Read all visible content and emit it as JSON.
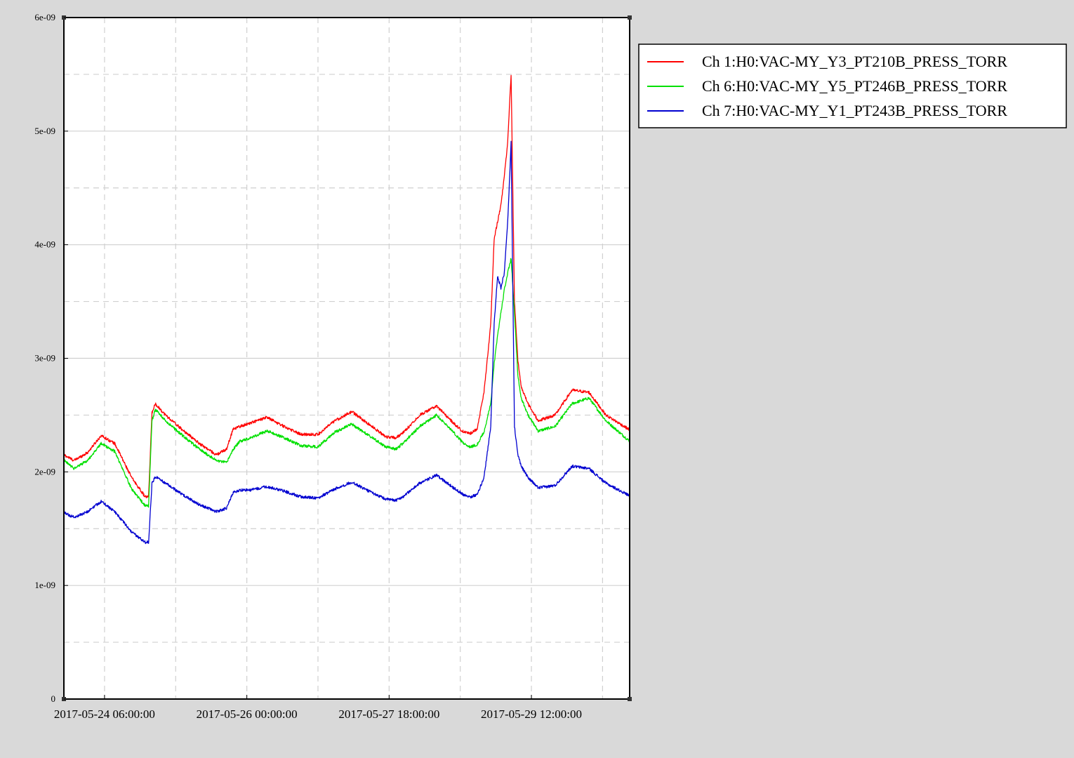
{
  "chart_data": {
    "type": "line",
    "title": "",
    "xlabel": "",
    "ylabel": "",
    "x_range_hours": [
      0,
      167
    ],
    "x_origin": "2017-05-24 00:00:00",
    "ylim": [
      0,
      6e-09
    ],
    "y_ticks": [
      {
        "value": 0,
        "label": "0"
      },
      {
        "value": 1e-09,
        "label": "1e-09"
      },
      {
        "value": 2e-09,
        "label": "2e-09"
      },
      {
        "value": 3e-09,
        "label": "3e-09"
      },
      {
        "value": 4e-09,
        "label": "4e-09"
      },
      {
        "value": 5e-09,
        "label": "5e-09"
      },
      {
        "value": 6e-09,
        "label": "6e-09"
      }
    ],
    "x_ticks": [
      {
        "hours": 12,
        "label": "2017-05-24 06:00:00"
      },
      {
        "hours": 54,
        "label": "2017-05-26 00:00:00"
      },
      {
        "hours": 96,
        "label": "2017-05-27 18:00:00"
      },
      {
        "hours": 138,
        "label": "2017-05-29 12:00:00"
      }
    ],
    "x_grid_hours": [
      12,
      33,
      54,
      75,
      96,
      117,
      138,
      159
    ],
    "y_grid_values": [
      5e-10,
      1e-09,
      1.5e-09,
      2e-09,
      2.5e-09,
      3e-09,
      3.5e-09,
      4e-09,
      4.5e-09,
      5e-09,
      5.5e-09
    ],
    "grid": true,
    "legend_position": "top-right-outside",
    "series": [
      {
        "name": "Ch 1:H0:VAC-MY_Y3_PT210B_PRESS_TORR",
        "color": "#ff0000",
        "x": [
          0,
          3,
          7,
          11,
          15,
          20,
          24,
          25,
          26,
          27,
          30,
          35,
          40,
          45,
          48,
          50,
          52,
          55,
          60,
          65,
          70,
          75,
          80,
          85,
          90,
          95,
          98,
          100,
          105,
          110,
          115,
          118,
          120,
          122,
          124,
          126,
          127,
          128,
          129,
          130,
          131,
          132,
          133,
          134,
          135,
          137,
          140,
          145,
          150,
          155,
          160,
          167
        ],
        "y": [
          2.15e-09,
          2.1e-09,
          2.17e-09,
          2.32e-09,
          2.25e-09,
          1.95e-09,
          1.78e-09,
          1.78e-09,
          2.52e-09,
          2.6e-09,
          2.5e-09,
          2.37e-09,
          2.25e-09,
          2.15e-09,
          2.2e-09,
          2.38e-09,
          2.4e-09,
          2.43e-09,
          2.48e-09,
          2.4e-09,
          2.33e-09,
          2.33e-09,
          2.45e-09,
          2.53e-09,
          2.42e-09,
          2.31e-09,
          2.3e-09,
          2.34e-09,
          2.5e-09,
          2.58e-09,
          2.43e-09,
          2.35e-09,
          2.34e-09,
          2.38e-09,
          2.7e-09,
          3.3e-09,
          4.05e-09,
          4.2e-09,
          4.35e-09,
          4.6e-09,
          4.9e-09,
          5.5e-09,
          3.5e-09,
          2.98e-09,
          2.75e-09,
          2.6e-09,
          2.45e-09,
          2.5e-09,
          2.72e-09,
          2.7e-09,
          2.5e-09,
          2.37e-09
        ]
      },
      {
        "name": "Ch 6:H0:VAC-MY_Y5_PT246B_PRESS_TORR",
        "color": "#00e000",
        "x": [
          0,
          3,
          7,
          11,
          15,
          20,
          24,
          25,
          26,
          27,
          30,
          35,
          40,
          45,
          48,
          50,
          52,
          55,
          60,
          65,
          70,
          75,
          80,
          85,
          90,
          95,
          98,
          100,
          105,
          110,
          115,
          118,
          120,
          122,
          124,
          126,
          127,
          128,
          129,
          130,
          131,
          132,
          133,
          134,
          135,
          137,
          140,
          145,
          150,
          155,
          160,
          167
        ],
        "y": [
          2.1e-09,
          2.03e-09,
          2.1e-09,
          2.25e-09,
          2.18e-09,
          1.85e-09,
          1.7e-09,
          1.7e-09,
          2.45e-09,
          2.55e-09,
          2.45e-09,
          2.32e-09,
          2.2e-09,
          2.1e-09,
          2.08e-09,
          2.2e-09,
          2.27e-09,
          2.3e-09,
          2.36e-09,
          2.3e-09,
          2.23e-09,
          2.22e-09,
          2.35e-09,
          2.42e-09,
          2.32e-09,
          2.22e-09,
          2.2e-09,
          2.25e-09,
          2.4e-09,
          2.5e-09,
          2.35e-09,
          2.25e-09,
          2.22e-09,
          2.24e-09,
          2.35e-09,
          2.6e-09,
          2.95e-09,
          3.2e-09,
          3.4e-09,
          3.6e-09,
          3.75e-09,
          3.88e-09,
          3.4e-09,
          2.85e-09,
          2.65e-09,
          2.5e-09,
          2.36e-09,
          2.4e-09,
          2.6e-09,
          2.65e-09,
          2.45e-09,
          2.27e-09
        ]
      },
      {
        "name": "Ch 7:H0:VAC-MY_Y1_PT243B_PRESS_TORR",
        "color": "#0000d0",
        "x": [
          0,
          3,
          7,
          11,
          15,
          20,
          24,
          25,
          26,
          27,
          30,
          35,
          40,
          45,
          48,
          50,
          52,
          55,
          60,
          65,
          70,
          75,
          80,
          85,
          90,
          95,
          98,
          100,
          105,
          110,
          115,
          118,
          120,
          122,
          124,
          126,
          127,
          128,
          129,
          130,
          131,
          132,
          133,
          134,
          135,
          137,
          140,
          145,
          150,
          155,
          160,
          167
        ],
        "y": [
          1.64e-09,
          1.6e-09,
          1.65e-09,
          1.74e-09,
          1.65e-09,
          1.47e-09,
          1.38e-09,
          1.38e-09,
          1.9e-09,
          1.96e-09,
          1.9e-09,
          1.8e-09,
          1.71e-09,
          1.65e-09,
          1.68e-09,
          1.82e-09,
          1.84e-09,
          1.84e-09,
          1.87e-09,
          1.83e-09,
          1.78e-09,
          1.77e-09,
          1.85e-09,
          1.91e-09,
          1.83e-09,
          1.76e-09,
          1.75e-09,
          1.78e-09,
          1.9e-09,
          1.97e-09,
          1.86e-09,
          1.8e-09,
          1.78e-09,
          1.8e-09,
          1.95e-09,
          2.4e-09,
          3.3e-09,
          3.72e-09,
          3.62e-09,
          3.75e-09,
          4.2e-09,
          4.9e-09,
          2.4e-09,
          2.15e-09,
          2.05e-09,
          1.95e-09,
          1.86e-09,
          1.88e-09,
          2.05e-09,
          2.03e-09,
          1.9e-09,
          1.79e-09
        ]
      }
    ]
  }
}
